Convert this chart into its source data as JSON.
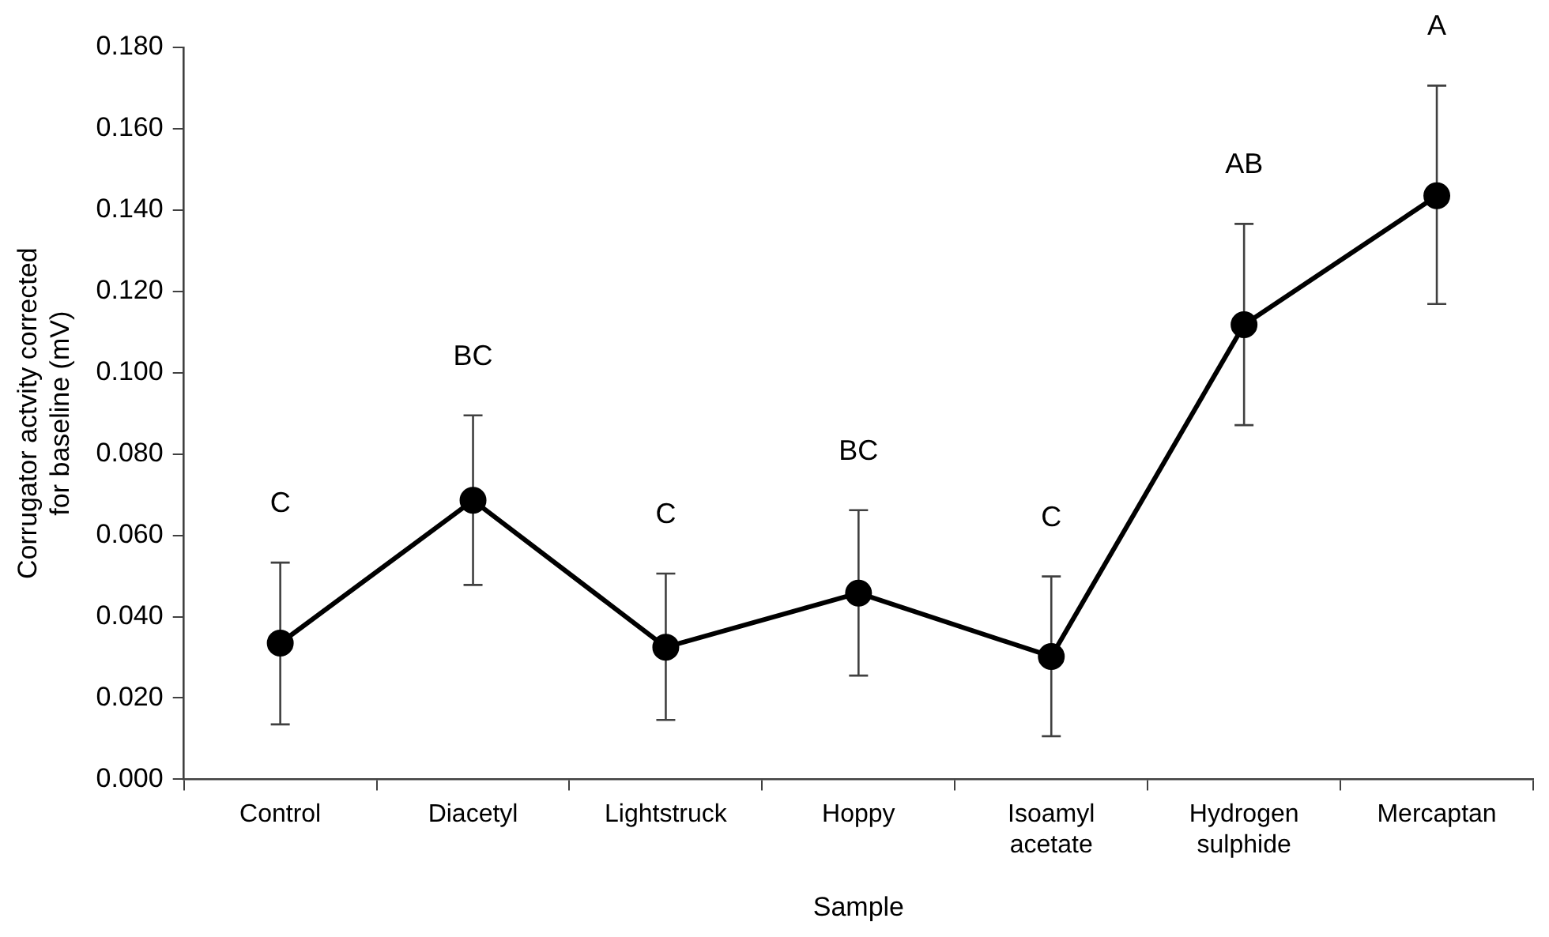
{
  "chart_data": {
    "type": "line",
    "xlabel": "Sample",
    "ylabel": "Corrugator actvity corrected for baseline (mV)",
    "categories": [
      "Control",
      "Diacetyl",
      "Lightstruck",
      "Hoppy",
      "Isoamyl acetate",
      "Hydrogen sulphide",
      "Mercaptan"
    ],
    "series": [
      {
        "color": "#000000",
        "values": [
          0.0335,
          0.0686,
          0.0325,
          0.0458,
          0.0302,
          0.1118,
          0.1435
        ],
        "errors": [
          [
            0.0135,
            0.0533
          ],
          [
            0.0478,
            0.0895
          ],
          [
            0.0146,
            0.0506
          ],
          [
            0.0255,
            0.0662
          ],
          [
            0.0106,
            0.0499
          ],
          [
            0.0871,
            0.1366
          ],
          [
            0.1169,
            0.1706
          ]
        ]
      }
    ],
    "ylim": [
      0,
      0.18
    ],
    "yticks": [
      {
        "value": 0,
        "label": "0.000"
      },
      {
        "value": 0.02,
        "label": "0.020"
      },
      {
        "value": 0.04,
        "label": "0.040"
      },
      {
        "value": 0.06,
        "label": "0.060"
      },
      {
        "value": 0.08,
        "label": "0.080"
      },
      {
        "value": 0.1,
        "label": "0.100"
      },
      {
        "value": 0.12,
        "label": "0.120"
      },
      {
        "value": 0.14,
        "label": "0.140"
      },
      {
        "value": 0.16,
        "label": "0.160"
      },
      {
        "value": 0.18,
        "label": "0.180"
      }
    ],
    "annotations": [
      {
        "text": "C",
        "x": "Control",
        "y": 0.0533
      },
      {
        "text": "BC",
        "x": "Diacetyl",
        "y": 0.0895
      },
      {
        "text": "C",
        "x": "Lightstruck",
        "y": 0.0506
      },
      {
        "text": "BC",
        "x": "Hoppy",
        "y": 0.0662
      },
      {
        "text": "C",
        "x": "Isoamyl acetate",
        "y": 0.0499
      },
      {
        "text": "AB",
        "x": "Hydrogen sulphide",
        "y": 0.1366
      },
      {
        "text": "A",
        "x": "Mercaptan",
        "y": 0.1706
      }
    ],
    "marker": "circle",
    "line_style": "solid",
    "grid": false,
    "legend": false
  }
}
